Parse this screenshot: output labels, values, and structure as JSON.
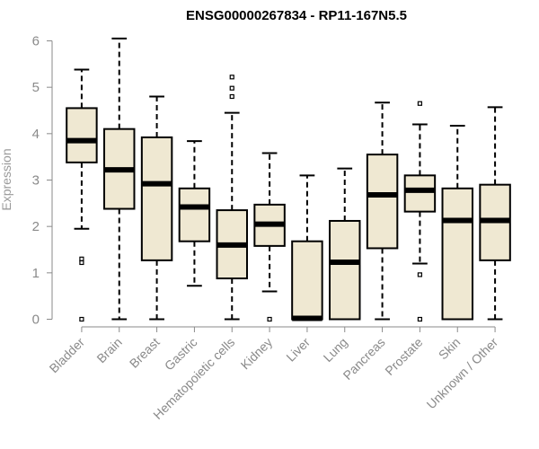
{
  "chart_data": {
    "type": "boxplot",
    "title": "ENSG00000267834 - RP11-167N5.5",
    "ylabel": "Expression",
    "xlabel": "",
    "ylim": [
      0,
      6
    ],
    "yticks": [
      "0",
      "1",
      "2",
      "3",
      "4",
      "5",
      "6"
    ],
    "categories": [
      "Bladder",
      "Brain",
      "Breast",
      "Gastric",
      "Hematopoietic cells",
      "Kidney",
      "Liver",
      "Lung",
      "Pancreas",
      "Prostate",
      "Skin",
      "Unknown / Other"
    ],
    "boxes": [
      {
        "whisker_low": 1.95,
        "q1": 3.38,
        "median": 3.85,
        "q3": 4.55,
        "whisker_high": 5.38,
        "outliers": [
          1.3,
          1.22,
          0.0
        ]
      },
      {
        "whisker_low": 0.0,
        "q1": 2.38,
        "median": 3.22,
        "q3": 4.1,
        "whisker_high": 6.05,
        "outliers": []
      },
      {
        "whisker_low": 0.0,
        "q1": 1.27,
        "median": 2.92,
        "q3": 3.92,
        "whisker_high": 4.8,
        "outliers": []
      },
      {
        "whisker_low": 0.72,
        "q1": 1.68,
        "median": 2.42,
        "q3": 2.82,
        "whisker_high": 3.84,
        "outliers": []
      },
      {
        "whisker_low": 0.0,
        "q1": 0.88,
        "median": 1.6,
        "q3": 2.35,
        "whisker_high": 4.45,
        "outliers": [
          5.22,
          4.98,
          4.8
        ]
      },
      {
        "whisker_low": 0.6,
        "q1": 1.58,
        "median": 2.05,
        "q3": 2.47,
        "whisker_high": 3.58,
        "outliers": [
          0.0
        ]
      },
      {
        "whisker_low": 0.0,
        "q1": 0.0,
        "median": 0.02,
        "q3": 1.68,
        "whisker_high": 3.1,
        "outliers": []
      },
      {
        "whisker_low": 0.0,
        "q1": 0.0,
        "median": 1.23,
        "q3": 2.12,
        "whisker_high": 3.25,
        "outliers": []
      },
      {
        "whisker_low": 0.0,
        "q1": 1.53,
        "median": 2.68,
        "q3": 3.55,
        "whisker_high": 4.67,
        "outliers": []
      },
      {
        "whisker_low": 1.2,
        "q1": 2.32,
        "median": 2.78,
        "q3": 3.1,
        "whisker_high": 4.2,
        "outliers": [
          4.65,
          0.96,
          0.0
        ]
      },
      {
        "whisker_low": 0.0,
        "q1": 0.0,
        "median": 2.13,
        "q3": 2.82,
        "whisker_high": 4.17,
        "outliers": []
      },
      {
        "whisker_low": 0.0,
        "q1": 1.27,
        "median": 2.13,
        "q3": 2.9,
        "whisker_high": 4.57,
        "outliers": []
      }
    ],
    "box_fill": "#efe8d2",
    "line_color": "#000000",
    "axis_color": "#8a8a8a",
    "text_color": "#8a8a8a",
    "grid": false,
    "legend": "none"
  }
}
